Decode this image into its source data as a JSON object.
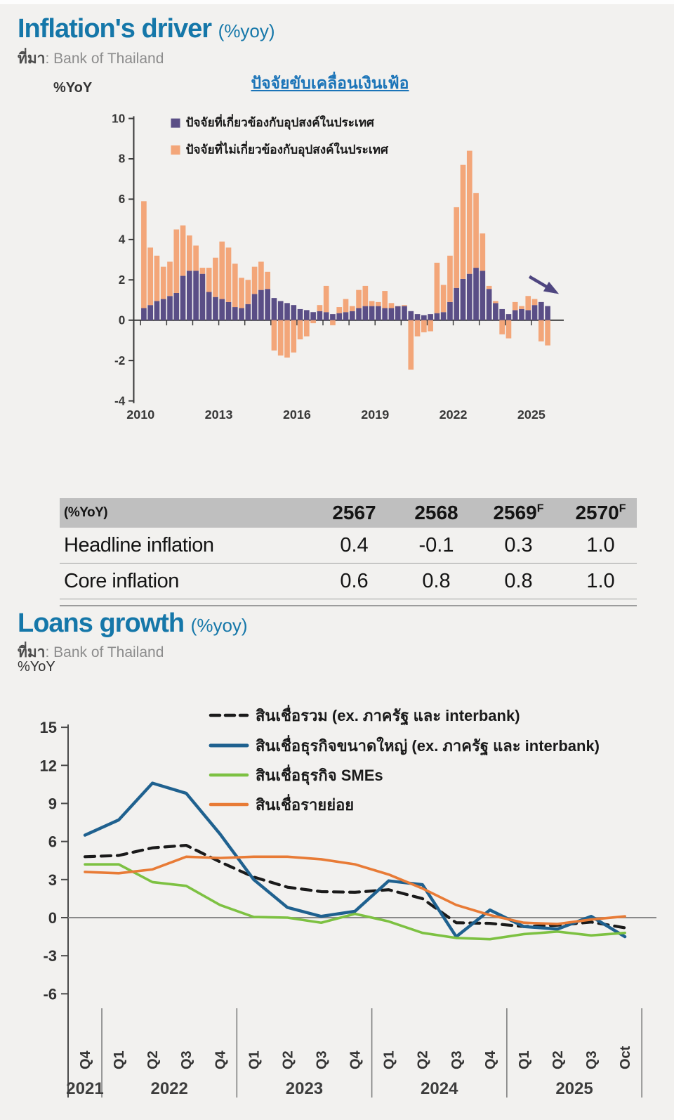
{
  "page": {
    "background": "#f2f1ef"
  },
  "inflation": {
    "title": "Inflation's driver",
    "title_suffix": "(%yoy)",
    "source_label": "ที่มา",
    "source_value": ": Bank of Thailand",
    "y_unit": "%YoY",
    "chart_link": "ปัจจัยขับเคลื่อนเงินเฟ้อ",
    "chart_data": {
      "type": "bar",
      "stacked": true,
      "frequency": "quarterly",
      "start_period": "2010Q1",
      "x_tick_labels": [
        "2010",
        "2013",
        "2016",
        "2019",
        "2022",
        "2025"
      ],
      "ylim": [
        -4,
        10
      ],
      "y_ticks": [
        10,
        8,
        6,
        4,
        2,
        0,
        -2,
        -4
      ],
      "legend_position": "top-left-inside",
      "grid": false,
      "series": [
        {
          "name": "ปัจจัยที่เกี่ยวข้องกับอุปสงค์ในประเทศ",
          "color": "#5a4e86",
          "values": [
            0.6,
            0.75,
            0.95,
            1.05,
            1.2,
            1.35,
            2.2,
            2.45,
            2.45,
            2.3,
            1.4,
            1.15,
            1.05,
            0.9,
            0.65,
            0.6,
            0.8,
            1.3,
            1.5,
            1.55,
            1.1,
            0.95,
            0.85,
            0.75,
            0.55,
            0.5,
            0.4,
            0.45,
            0.4,
            0.3,
            0.35,
            0.4,
            0.45,
            0.6,
            0.7,
            0.7,
            0.7,
            0.6,
            0.6,
            0.7,
            0.7,
            0.45,
            0.3,
            0.25,
            0.3,
            0.35,
            0.4,
            0.9,
            1.6,
            2.05,
            2.3,
            2.6,
            2.45,
            1.55,
            0.85,
            0.55,
            0.3,
            0.5,
            0.55,
            0.5,
            0.75,
            0.9,
            0.7
          ]
        },
        {
          "name": "ปัจจัยที่ไม่เกี่ยวข้องกับอุปสงค์ในประเทศ",
          "color": "#f3a679",
          "values": [
            5.3,
            2.85,
            2.25,
            1.6,
            1.7,
            3.15,
            2.5,
            1.75,
            1.25,
            0.3,
            1.2,
            1.95,
            2.85,
            2.7,
            2.15,
            1.5,
            1.2,
            1.35,
            1.4,
            0.85,
            -1.5,
            -1.75,
            -1.85,
            -1.6,
            -0.95,
            -0.8,
            -0.15,
            0.3,
            1.3,
            -0.25,
            0.3,
            0.65,
            0.25,
            0.9,
            1.0,
            0.25,
            0.2,
            0.85,
            0.25,
            0.0,
            0.05,
            -2.45,
            -0.8,
            -0.6,
            -0.55,
            2.5,
            1.35,
            2.3,
            4.0,
            5.65,
            6.1,
            3.7,
            1.85,
            0.15,
            0.1,
            -0.7,
            -0.9,
            0.4,
            0.15,
            0.7,
            0.3,
            -1.05,
            -1.25
          ]
        }
      ],
      "annotation": {
        "type": "arrow-down-right",
        "color": "#4f4680"
      }
    },
    "table": {
      "unit_label": "(%YoY)",
      "columns": [
        {
          "label": "2567",
          "sup": ""
        },
        {
          "label": "2568",
          "sup": ""
        },
        {
          "label": "2569",
          "sup": "F"
        },
        {
          "label": "2570",
          "sup": "F"
        }
      ],
      "rows": [
        {
          "label": "Headline inflation",
          "values": [
            "0.4",
            "-0.1",
            "0.3",
            "1.0"
          ]
        },
        {
          "label": "Core inflation",
          "values": [
            "0.6",
            "0.8",
            "0.8",
            "1.0"
          ]
        }
      ]
    }
  },
  "loans": {
    "title": "Loans growth",
    "title_suffix": "(%yoy)",
    "source_label": "ที่มา",
    "source_value": ": Bank of Thailand",
    "y_unit": "%YoY",
    "chart_data": {
      "type": "line",
      "x_labels": [
        "Q4",
        "Q1",
        "Q2",
        "Q3",
        "Q4",
        "Q1",
        "Q2",
        "Q3",
        "Q4",
        "Q1",
        "Q2",
        "Q3",
        "Q4",
        "Q1",
        "Q2",
        "Q3",
        "Oct"
      ],
      "year_groups": [
        {
          "label": "2021",
          "count": 1
        },
        {
          "label": "2022",
          "count": 4
        },
        {
          "label": "2023",
          "count": 4
        },
        {
          "label": "2024",
          "count": 4
        },
        {
          "label": "2025",
          "count": 4
        }
      ],
      "ylim": [
        -6,
        15
      ],
      "y_ticks": [
        15,
        12,
        9,
        6,
        3,
        0,
        -3,
        -6
      ],
      "grid": false,
      "legend_position": "top-inside",
      "series": [
        {
          "name": "สินเชื่อรวม (ex. ภาครัฐ และ interbank)",
          "color": "#1a1a1a",
          "style": "dashed",
          "values": [
            4.8,
            4.9,
            5.5,
            5.7,
            4.4,
            3.2,
            2.4,
            2.05,
            2.0,
            2.2,
            1.5,
            -0.4,
            -0.45,
            -0.7,
            -0.6,
            -0.35,
            -0.8
          ]
        },
        {
          "name": "สินเชื่อธุรกิจขนาดใหญ่ (ex. ภาครัฐ และ interbank)",
          "color": "#1f618f",
          "style": "solid",
          "values": [
            6.5,
            7.7,
            10.6,
            9.8,
            6.6,
            3.0,
            0.8,
            0.1,
            0.5,
            2.9,
            2.6,
            -1.5,
            0.6,
            -0.7,
            -0.9,
            0.1,
            -1.5
          ]
        },
        {
          "name": "สินเชื่อธุรกิจ SMEs",
          "color": "#7dc142",
          "style": "solid",
          "values": [
            4.2,
            4.2,
            2.8,
            2.5,
            1.0,
            0.05,
            0.0,
            -0.4,
            0.3,
            -0.3,
            -1.2,
            -1.6,
            -1.7,
            -1.3,
            -1.1,
            -1.4,
            -1.2
          ]
        },
        {
          "name": "สินเชื่อรายย่อย",
          "color": "#e87b36",
          "style": "solid",
          "values": [
            3.6,
            3.5,
            3.8,
            4.8,
            4.7,
            4.8,
            4.8,
            4.6,
            4.2,
            3.4,
            2.3,
            1.0,
            0.2,
            -0.4,
            -0.5,
            -0.15,
            0.1
          ]
        }
      ]
    }
  }
}
